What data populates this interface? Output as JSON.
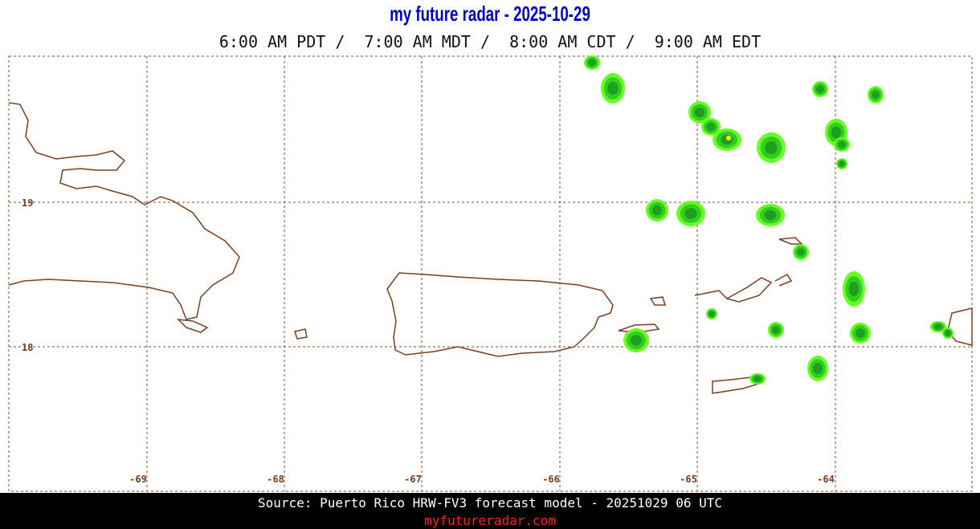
{
  "header": {
    "title": "my future radar - 2025-10-29",
    "times": "6:00 AM PDT /  7:00 AM MDT /  8:00 AM CDT /  9:00 AM EDT"
  },
  "map": {
    "latitude_labels": [
      "19",
      "18"
    ],
    "longitude_labels": [
      "-69",
      "-68",
      "-67",
      "-66",
      "-65",
      "-64"
    ]
  },
  "footer": {
    "source": "Source: Puerto Rico HRW-FV3 forecast model - 20251029 06 UTC",
    "site": "myfutureradar.com"
  }
}
